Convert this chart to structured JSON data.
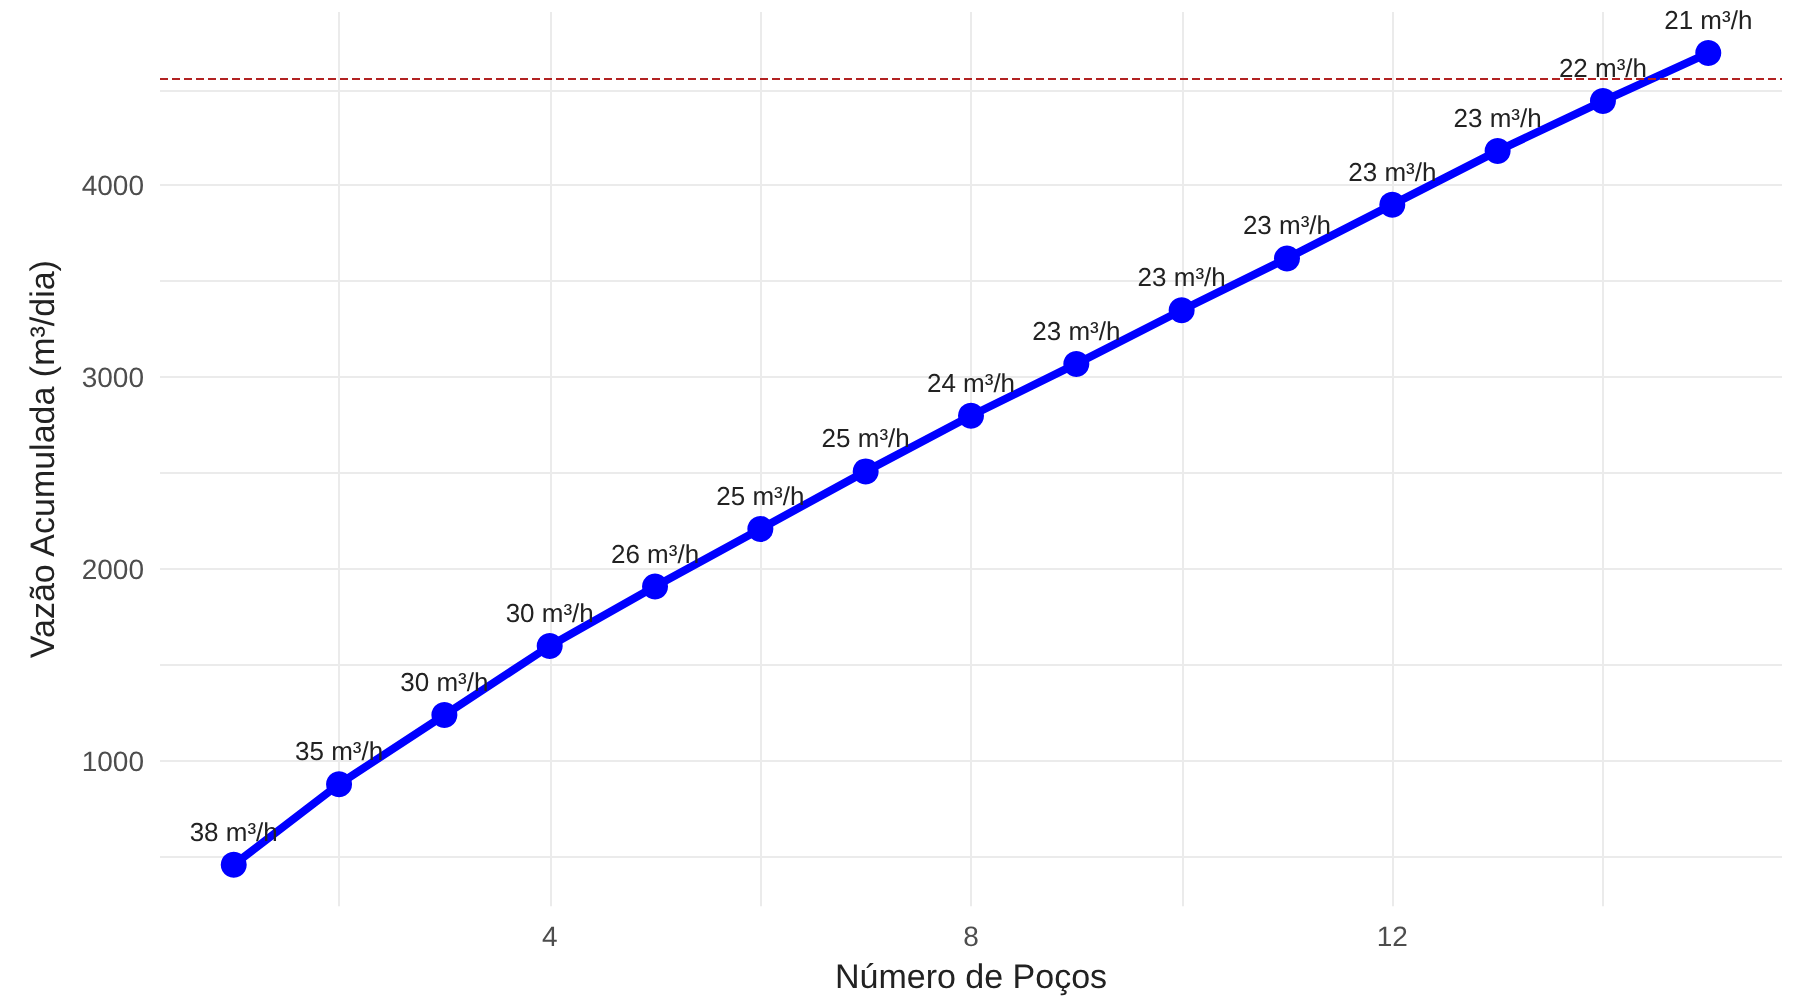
{
  "chart_data": {
    "type": "line",
    "xlabel": "Número de Poços",
    "ylabel": "Vazão Acumulada (m³/dia)",
    "x": [
      1,
      2,
      3,
      4,
      5,
      6,
      7,
      8,
      9,
      10,
      11,
      12,
      13,
      14,
      15
    ],
    "series": [
      {
        "color": "#0000ff",
        "values": [
          460,
          880,
          1240,
          1600,
          1910,
          2210,
          2510,
          2800,
          3070,
          3350,
          3620,
          3900,
          4180,
          4440,
          4690
        ]
      }
    ],
    "annotations": [
      {
        "text": "38 m³/h",
        "x": 1,
        "y": 460
      },
      {
        "text": "35 m³/h",
        "x": 2,
        "y": 880
      },
      {
        "text": "30 m³/h",
        "x": 3,
        "y": 1240
      },
      {
        "text": "30 m³/h",
        "x": 4,
        "y": 1600
      },
      {
        "text": "26 m³/h",
        "x": 5,
        "y": 1910
      },
      {
        "text": "25 m³/h",
        "x": 6,
        "y": 2210
      },
      {
        "text": "25 m³/h",
        "x": 7,
        "y": 2510
      },
      {
        "text": "24 m³/h",
        "x": 8,
        "y": 2800
      },
      {
        "text": "23 m³/h",
        "x": 9,
        "y": 3070
      },
      {
        "text": "23 m³/h",
        "x": 10,
        "y": 3350
      },
      {
        "text": "23 m³/h",
        "x": 11,
        "y": 3620
      },
      {
        "text": "23 m³/h",
        "x": 12,
        "y": 3900
      },
      {
        "text": "23 m³/h",
        "x": 13,
        "y": 4180
      },
      {
        "text": "22 m³/h",
        "x": 14,
        "y": 4440
      },
      {
        "text": "21 m³/h",
        "x": 15,
        "y": 4690
      }
    ],
    "xlim": [
      0.3,
      15.7
    ],
    "ylim": [
      244,
      4904
    ],
    "xticks": [
      {
        "value": 2,
        "label": null
      },
      4,
      {
        "value": 6,
        "label": null
      },
      8,
      {
        "value": 10,
        "label": null
      },
      12,
      {
        "value": 14,
        "label": null
      }
    ],
    "yticks": [
      {
        "value": 500,
        "label": null
      },
      1000,
      {
        "value": 1500,
        "label": null
      },
      2000,
      {
        "value": 2500,
        "label": null
      },
      3000,
      {
        "value": 3500,
        "label": null
      },
      4000,
      {
        "value": 4500,
        "label": null
      }
    ],
    "ref_lines": [
      {
        "axis": "y",
        "value": 4560,
        "color": "#b22222",
        "line_style": "dashed"
      }
    ],
    "grid": true,
    "marker": "circle",
    "line_style": "solid"
  }
}
